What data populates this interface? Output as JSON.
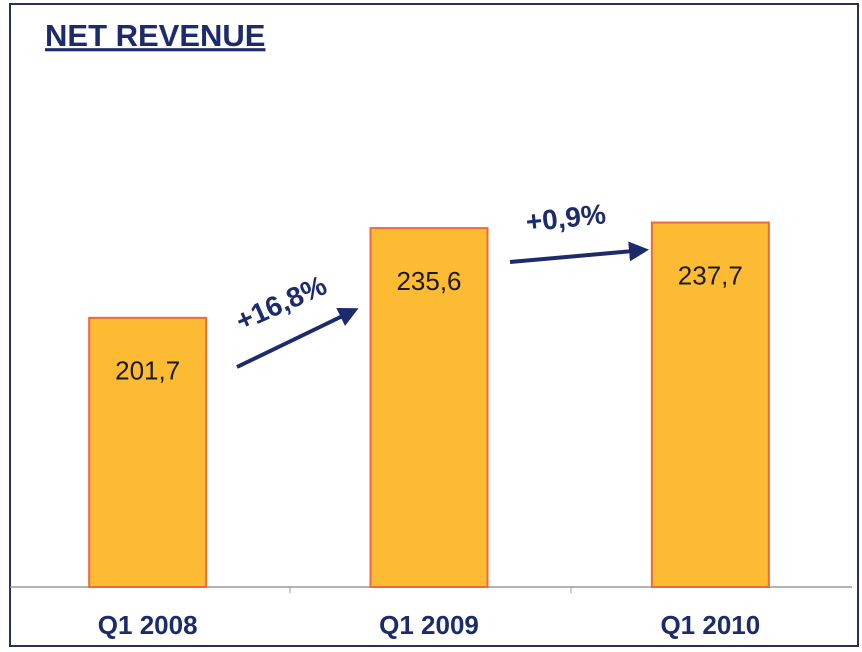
{
  "chart_data": {
    "type": "bar",
    "title": "NET REVENUE",
    "categories": [
      "Q1 2008",
      "Q1 2009",
      "Q1 2010"
    ],
    "values": [
      201.7,
      235.6,
      237.7
    ],
    "value_labels": [
      "201,7",
      "235,6",
      "237,7"
    ],
    "color": "#fdba33",
    "ylim": [
      100,
      250
    ],
    "annotations": [
      "+16,8%",
      "+0,9%"
    ]
  }
}
